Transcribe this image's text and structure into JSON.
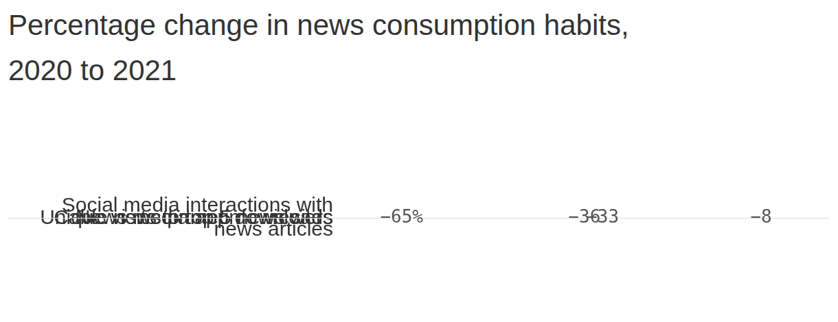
{
  "chart_data": {
    "type": "bar",
    "orientation": "horizontal",
    "title": "Percentage change in news consumption habits, 2020 to 2021",
    "categories": [
      "Social media interactions with news articles",
      "Cable news primetime viewers",
      "News media app downloads",
      "Unique visits to top 5 news sites"
    ],
    "values": [
      -65,
      -36,
      -33,
      -8
    ],
    "value_labels": [
      "−65%",
      "−36",
      "−33",
      "−8"
    ],
    "color": "#f24c16",
    "xlim": [
      -65,
      0
    ],
    "data_labels": true,
    "tick_labels": "y",
    "grid": true
  }
}
